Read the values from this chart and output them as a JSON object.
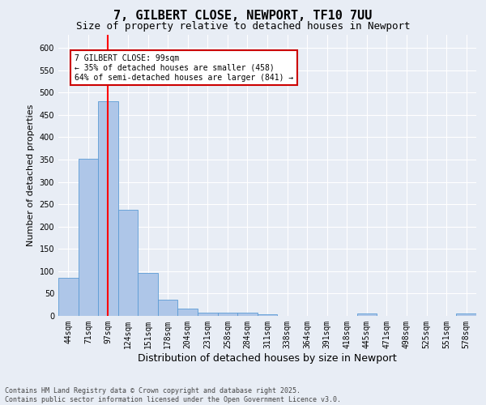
{
  "title": "7, GILBERT CLOSE, NEWPORT, TF10 7UU",
  "subtitle": "Size of property relative to detached houses in Newport",
  "xlabel": "Distribution of detached houses by size in Newport",
  "ylabel": "Number of detached properties",
  "footer_line1": "Contains HM Land Registry data © Crown copyright and database right 2025.",
  "footer_line2": "Contains public sector information licensed under the Open Government Licence v3.0.",
  "categories": [
    "44sqm",
    "71sqm",
    "97sqm",
    "124sqm",
    "151sqm",
    "178sqm",
    "204sqm",
    "231sqm",
    "258sqm",
    "284sqm",
    "311sqm",
    "338sqm",
    "364sqm",
    "391sqm",
    "418sqm",
    "445sqm",
    "471sqm",
    "498sqm",
    "525sqm",
    "551sqm",
    "578sqm"
  ],
  "values": [
    85,
    352,
    480,
    237,
    96,
    37,
    16,
    7,
    8,
    8,
    4,
    0,
    0,
    0,
    0,
    5,
    0,
    0,
    0,
    0,
    5
  ],
  "bar_color": "#aec6e8",
  "bar_edge_color": "#5b9bd5",
  "red_line_x": 2,
  "annotation_text": "7 GILBERT CLOSE: 99sqm\n← 35% of detached houses are smaller (458)\n64% of semi-detached houses are larger (841) →",
  "annotation_box_color": "#ffffff",
  "annotation_box_edge": "#cc0000",
  "ylim": [
    0,
    630
  ],
  "yticks": [
    0,
    50,
    100,
    150,
    200,
    250,
    300,
    350,
    400,
    450,
    500,
    550,
    600
  ],
  "background_color": "#e8edf5",
  "grid_color": "#ffffff",
  "title_fontsize": 11,
  "subtitle_fontsize": 9,
  "axis_label_fontsize": 8,
  "tick_fontsize": 7,
  "annotation_fontsize": 7,
  "footer_fontsize": 6
}
